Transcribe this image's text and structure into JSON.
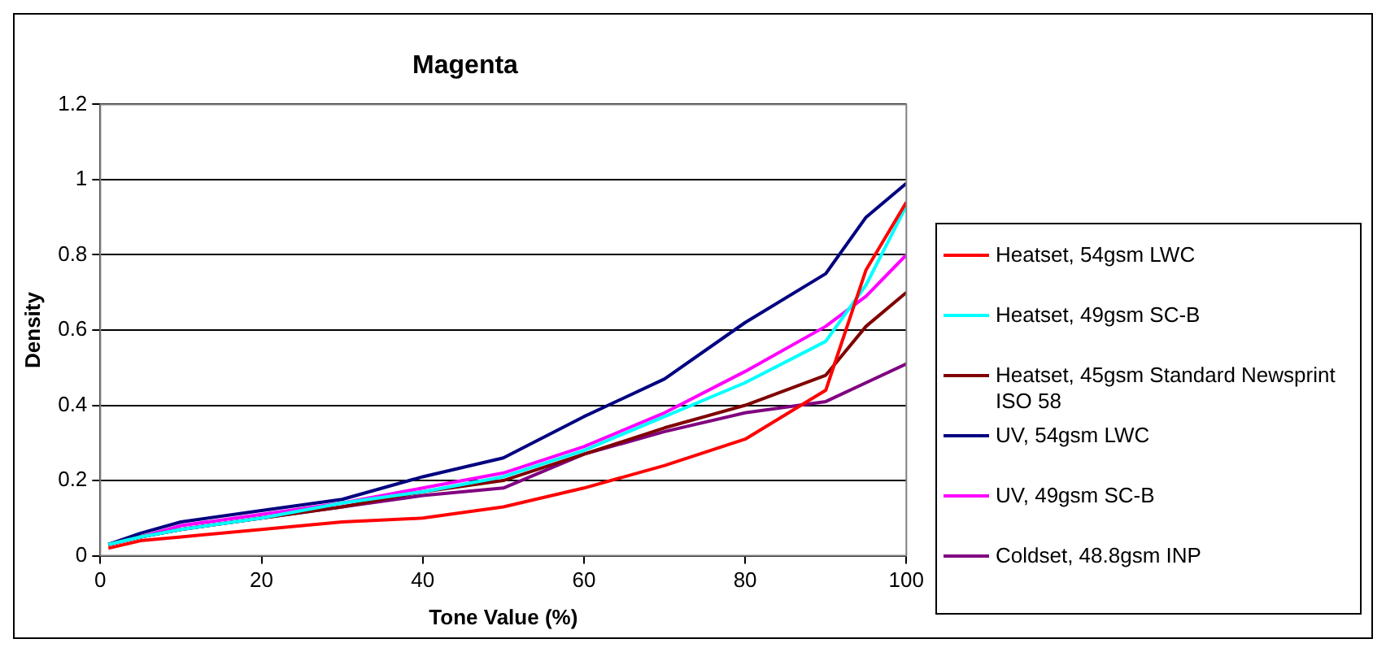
{
  "chart_data": {
    "type": "line",
    "title": "Magenta",
    "xlabel": "Tone Value (%)",
    "ylabel": "Density",
    "x": [
      1,
      5,
      10,
      20,
      30,
      40,
      50,
      60,
      70,
      80,
      90,
      95,
      100
    ],
    "xlim": [
      0,
      100
    ],
    "xticks": [
      0,
      20,
      40,
      60,
      80,
      100
    ],
    "ylim": [
      0,
      1.2
    ],
    "yticks": [
      0,
      0.2,
      0.4,
      0.6,
      0.8,
      1,
      1.2
    ],
    "grid": "y",
    "legend": "right",
    "marker": "none",
    "line_style": "solid",
    "series": [
      {
        "name": "Heatset, 54gsm LWC",
        "color": "#ff0000",
        "values": [
          0.02,
          0.04,
          0.05,
          0.07,
          0.09,
          0.1,
          0.13,
          0.18,
          0.24,
          0.31,
          0.44,
          0.76,
          0.94
        ]
      },
      {
        "name": "Heatset, 49gsm SC-B",
        "color": "#00ffff",
        "values": [
          0.03,
          0.05,
          0.07,
          0.1,
          0.14,
          0.17,
          0.21,
          0.28,
          0.37,
          0.46,
          0.57,
          0.72,
          0.93
        ]
      },
      {
        "name": "Heatset, 45gsm Standard Newsprint ISO 58",
        "color": "#800000",
        "values": [
          0.03,
          0.05,
          0.07,
          0.1,
          0.13,
          0.17,
          0.2,
          0.27,
          0.34,
          0.4,
          0.48,
          0.61,
          0.7
        ]
      },
      {
        "name": "UV, 54gsm LWC",
        "color": "#000080",
        "values": [
          0.03,
          0.06,
          0.09,
          0.12,
          0.15,
          0.21,
          0.26,
          0.37,
          0.47,
          0.62,
          0.75,
          0.9,
          0.99
        ]
      },
      {
        "name": "UV, 49gsm SC-B",
        "color": "#ff00ff",
        "values": [
          0.03,
          0.05,
          0.08,
          0.11,
          0.14,
          0.18,
          0.22,
          0.29,
          0.38,
          0.49,
          0.61,
          0.69,
          0.8
        ]
      },
      {
        "name": "Coldset, 48.8gsm INP",
        "color": "#800080",
        "values": [
          0.03,
          0.05,
          0.07,
          0.1,
          0.13,
          0.16,
          0.18,
          0.27,
          0.33,
          0.38,
          0.41,
          0.46,
          0.51
        ]
      }
    ]
  }
}
